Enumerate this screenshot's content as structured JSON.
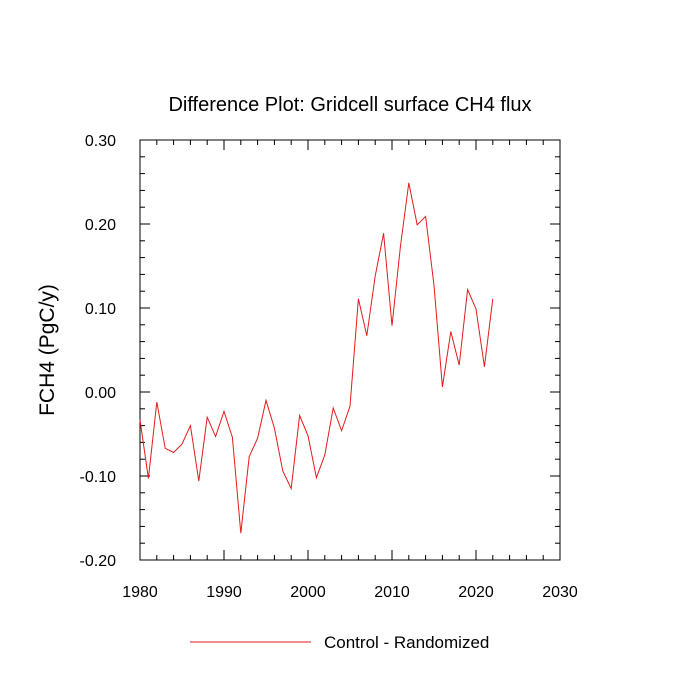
{
  "chart_data": {
    "type": "line",
    "title": "Difference Plot: Gridcell surface CH4 flux",
    "xlabel": "",
    "ylabel": "FCH4  (PgC/y)",
    "xlim": [
      1980,
      2030
    ],
    "ylim": [
      -0.2,
      0.3
    ],
    "x_ticks": [
      1980,
      1990,
      2000,
      2010,
      2020,
      2030
    ],
    "y_ticks": [
      -0.2,
      -0.1,
      0.0,
      0.1,
      0.2,
      0.3
    ],
    "x_tick_labels": [
      "1980",
      "1990",
      "2000",
      "2010",
      "2020",
      "2030"
    ],
    "y_tick_labels": [
      "-0.20",
      "-0.10",
      "0.00",
      "0.10",
      "0.20",
      "0.30"
    ],
    "grid": false,
    "legend_position": "bottom",
    "series": [
      {
        "name": "Control - Randomized",
        "color": "#e41a1c",
        "x": [
          1980,
          1981,
          1982,
          1983,
          1984,
          1985,
          1986,
          1987,
          1988,
          1989,
          1990,
          1991,
          1992,
          1993,
          1994,
          1995,
          1996,
          1997,
          1998,
          1999,
          2000,
          2001,
          2002,
          2003,
          2004,
          2005,
          2006,
          2007,
          2008,
          2009,
          2010,
          2011,
          2012,
          2013,
          2014,
          2015,
          2016,
          2017,
          2018,
          2019,
          2020,
          2021,
          2022
        ],
        "y": [
          -0.033,
          -0.103,
          -0.012,
          -0.067,
          -0.072,
          -0.062,
          -0.04,
          -0.106,
          -0.03,
          -0.053,
          -0.023,
          -0.054,
          -0.168,
          -0.077,
          -0.055,
          -0.01,
          -0.043,
          -0.094,
          -0.115,
          -0.028,
          -0.052,
          -0.102,
          -0.075,
          -0.019,
          -0.046,
          -0.017,
          0.111,
          0.067,
          0.138,
          0.189,
          0.079,
          0.173,
          0.249,
          0.199,
          0.209,
          0.127,
          0.006,
          0.072,
          0.032,
          0.122,
          0.099,
          0.03,
          0.111
        ]
      }
    ]
  }
}
